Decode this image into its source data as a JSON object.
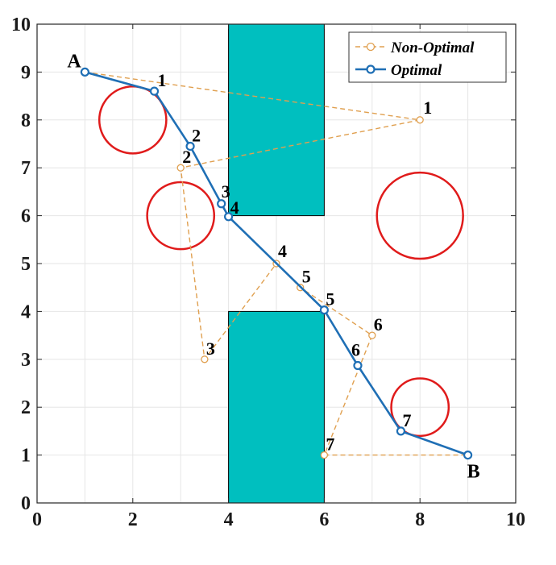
{
  "chart_data": {
    "type": "line",
    "xlim": [
      0,
      10
    ],
    "ylim": [
      0,
      10
    ],
    "x_ticks": [
      "0",
      "2",
      "4",
      "6",
      "8",
      "10"
    ],
    "y_ticks": [
      "0",
      "1",
      "2",
      "3",
      "4",
      "5",
      "6",
      "7",
      "8",
      "9",
      "10"
    ],
    "grid": true,
    "legend_position": "top-right",
    "colors": {
      "optimal": "#1f6fb5",
      "non_optimal": "#e0a050",
      "obstacle_fill": "#00bfbf",
      "circle": "#e01b1b",
      "grid": "#e6e6e6",
      "axis": "#262626"
    },
    "start": {
      "label": "A",
      "x": 1,
      "y": 9
    },
    "end": {
      "label": "B",
      "x": 9,
      "y": 1
    },
    "series": [
      {
        "name": "Non-Optimal",
        "style": "dashed-circle",
        "points": [
          {
            "x": 1,
            "y": 9
          },
          {
            "x": 8,
            "y": 8,
            "label": "1"
          },
          {
            "x": 3,
            "y": 7,
            "label": "2"
          },
          {
            "x": 3.5,
            "y": 3,
            "label": "3"
          },
          {
            "x": 5,
            "y": 5,
            "label": "4"
          },
          {
            "x": 5.5,
            "y": 4.5,
            "label": "5"
          },
          {
            "x": 7,
            "y": 3.5,
            "label": "6"
          },
          {
            "x": 6,
            "y": 1,
            "label": "7"
          },
          {
            "x": 9,
            "y": 1
          }
        ]
      },
      {
        "name": "Optimal",
        "style": "solid-circle",
        "points": [
          {
            "x": 1,
            "y": 9
          },
          {
            "x": 2.45,
            "y": 8.6,
            "label": "1"
          },
          {
            "x": 3.2,
            "y": 7.45,
            "label": "2"
          },
          {
            "x": 3.85,
            "y": 6.25,
            "label": "3"
          },
          {
            "x": 4,
            "y": 5.98,
            "label": "4"
          },
          {
            "x": 6,
            "y": 4.03,
            "label": "5"
          },
          {
            "x": 6.7,
            "y": 2.87,
            "label": "6"
          },
          {
            "x": 7.6,
            "y": 1.5,
            "label": "7"
          },
          {
            "x": 9,
            "y": 1
          }
        ]
      }
    ],
    "obstacles": [
      {
        "shape": "rectangle",
        "x0": 4,
        "x1": 6,
        "y0": 6,
        "y1": 10
      },
      {
        "shape": "rectangle",
        "x0": 4,
        "x1": 6,
        "y0": 0,
        "y1": 4
      },
      {
        "shape": "circle",
        "cx": 2,
        "cy": 8,
        "r": 0.7
      },
      {
        "shape": "circle",
        "cx": 3,
        "cy": 6,
        "r": 0.7
      },
      {
        "shape": "circle",
        "cx": 8,
        "cy": 6,
        "r": 0.9
      },
      {
        "shape": "circle",
        "cx": 8,
        "cy": 2,
        "r": 0.6
      }
    ]
  }
}
